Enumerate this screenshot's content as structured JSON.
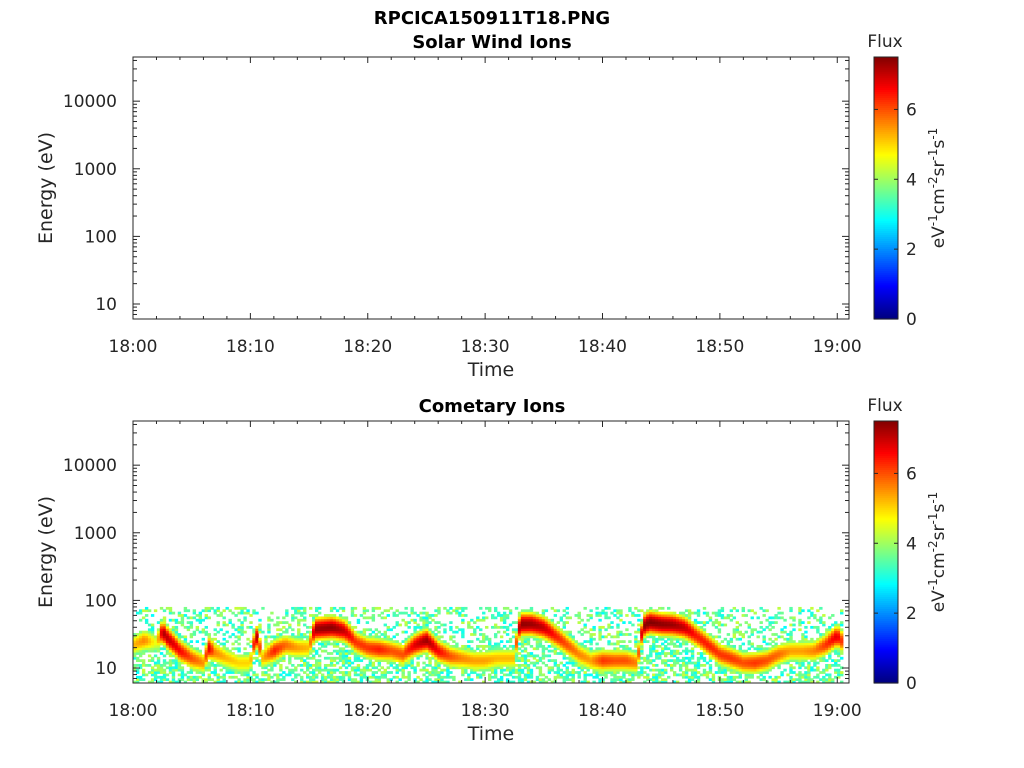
{
  "figure": {
    "filename_title": "RPCICA150911T18.PNG"
  },
  "chart_data": [
    {
      "type": "heatmap",
      "title": "Solar Wind Ions",
      "xlabel": "Time",
      "ylabel": "Energy (eV)",
      "x_ticks": [
        "18:00",
        "18:10",
        "18:20",
        "18:30",
        "18:40",
        "18:50",
        "19:00"
      ],
      "y_ticks": [
        "10",
        "100",
        "1000",
        "10000"
      ],
      "y_scale": "log",
      "ylim": [
        6,
        45000
      ],
      "xlim_minutes": [
        0,
        61
      ],
      "colorbar": {
        "title": "Flux",
        "label": "eV-1cm-2sr-1s-1",
        "ticks": [
          "0",
          "2",
          "4",
          "6"
        ],
        "range": [
          0,
          7.5
        ],
        "colormap": "jet"
      },
      "data_description_points": []
    },
    {
      "type": "heatmap",
      "title": "Cometary Ions",
      "xlabel": "Time",
      "ylabel": "Energy (eV)",
      "x_ticks": [
        "18:00",
        "18:10",
        "18:20",
        "18:30",
        "18:40",
        "18:50",
        "19:00"
      ],
      "y_ticks": [
        "10",
        "100",
        "1000",
        "10000"
      ],
      "y_scale": "log",
      "ylim": [
        6,
        45000
      ],
      "xlim_minutes": [
        0,
        61
      ],
      "colorbar": {
        "title": "Flux",
        "label": "eV-1cm-2sr-1s-1",
        "ticks": [
          "0",
          "2",
          "4",
          "6"
        ],
        "range": [
          0,
          7.5
        ],
        "colormap": "jet"
      },
      "peak_energy_eV": {
        "minutes": [
          0,
          1,
          2,
          2.5,
          3,
          4,
          5,
          6,
          6.5,
          7,
          8,
          9,
          10,
          10.5,
          11,
          12,
          13,
          14,
          15,
          15.5,
          17,
          18,
          19,
          20,
          21,
          22,
          23,
          24,
          25,
          26,
          27,
          28,
          29,
          30,
          31,
          32,
          32.5,
          33,
          34,
          35,
          36,
          37,
          38,
          39,
          40,
          41,
          42,
          43,
          43.5,
          44,
          45,
          46,
          47,
          48,
          49,
          50,
          51,
          52,
          53,
          54,
          55,
          56,
          57,
          58,
          59,
          60,
          61
        ],
        "values": [
          22,
          26,
          24,
          35,
          27,
          18,
          14,
          12,
          20,
          17,
          14,
          12,
          12,
          30,
          14,
          18,
          22,
          20,
          20,
          38,
          40,
          36,
          24,
          20,
          19,
          18,
          16,
          22,
          26,
          18,
          15,
          14,
          13,
          13,
          14,
          14,
          14,
          45,
          45,
          40,
          30,
          22,
          16,
          13,
          13,
          13,
          13,
          12,
          42,
          48,
          45,
          44,
          40,
          30,
          22,
          16,
          14,
          12,
          12,
          13,
          16,
          18,
          18,
          18,
          22,
          30,
          18
        ]
      },
      "peak_flux_log": {
        "minutes": [
          0,
          1,
          2,
          2.5,
          3,
          4,
          5,
          6,
          6.5,
          7,
          8,
          9,
          10,
          10.5,
          11,
          12,
          13,
          14,
          15,
          15.5,
          17,
          18,
          19,
          20,
          21,
          22,
          23,
          24,
          25,
          26,
          27,
          28,
          29,
          30,
          31,
          32,
          32.5,
          33,
          34,
          35,
          36,
          37,
          38,
          39,
          40,
          41,
          42,
          43,
          43.5,
          44,
          45,
          46,
          47,
          48,
          49,
          50,
          51,
          52,
          53,
          54,
          55,
          56,
          57,
          58,
          59,
          60,
          61
        ],
        "values": [
          5.2,
          5.6,
          4.5,
          7.2,
          7.0,
          6.6,
          6.0,
          5.5,
          6.8,
          5.6,
          5.2,
          5.0,
          5.0,
          7.3,
          5.2,
          6.4,
          5.8,
          5.4,
          5.2,
          7.3,
          7.4,
          7.0,
          6.2,
          6.2,
          6.4,
          6.0,
          6.0,
          6.8,
          7.3,
          6.6,
          6.0,
          5.6,
          5.4,
          5.4,
          5.2,
          5.2,
          5.2,
          7.4,
          7.3,
          7.0,
          6.4,
          6.0,
          5.6,
          5.4,
          6.2,
          6.0,
          6.0,
          5.6,
          7.4,
          7.5,
          7.4,
          7.3,
          7.0,
          6.4,
          6.4,
          6.2,
          6.2,
          6.0,
          6.2,
          6.0,
          5.8,
          5.4,
          5.4,
          5.6,
          6.2,
          6.8,
          5.2
        ]
      },
      "background_energy_band_eV": [
        6,
        80
      ]
    }
  ]
}
